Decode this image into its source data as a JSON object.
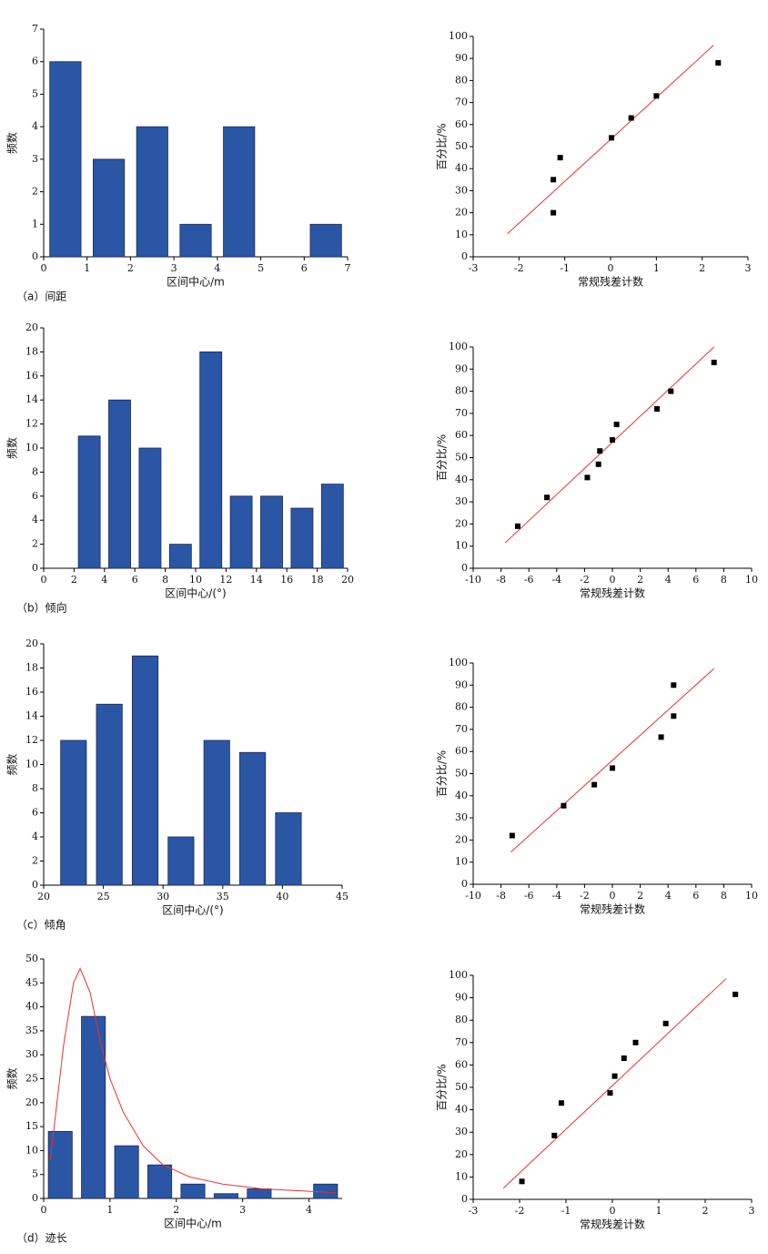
{
  "chart_data": [
    {
      "type": "bar",
      "caption": "（a）间距",
      "xlabel": "区间中心/m",
      "ylabel": "频数",
      "color": "#2b56a5",
      "x": [
        0.5,
        1.5,
        2.5,
        3.5,
        4.5,
        5.5,
        6.5
      ],
      "values": [
        6,
        3,
        4,
        1,
        4,
        0,
        1
      ],
      "xlim": [
        0,
        7
      ],
      "xticks": [
        0,
        1,
        2,
        3,
        4,
        5,
        6,
        7
      ],
      "ylim": [
        0,
        7
      ],
      "yticks": [
        0,
        1,
        2,
        3,
        4,
        5,
        6,
        7
      ]
    },
    {
      "type": "scatter",
      "xlabel": "常规残差计数",
      "ylabel": "百分比/%",
      "color": "#000000",
      "x": [
        -1.25,
        -1.25,
        -1.1,
        0.02,
        0.45,
        1.0,
        2.35
      ],
      "values": [
        20,
        35,
        45,
        54,
        63,
        73,
        88
      ],
      "fit_line": {
        "color": "#e8322d",
        "x": [
          -2.25,
          2.25
        ],
        "values": [
          10.5,
          96
        ]
      },
      "xlim": [
        -3,
        3
      ],
      "xticks": [
        -3,
        -2,
        -1,
        0,
        1,
        2,
        3
      ],
      "ylim": [
        0,
        100
      ],
      "yticks": [
        0,
        10,
        20,
        30,
        40,
        50,
        60,
        70,
        80,
        90,
        100
      ]
    },
    {
      "type": "bar",
      "caption": "（b）倾向",
      "xlabel": "区间中心/(°)",
      "ylabel": "频数",
      "color": "#2b56a5",
      "x": [
        3,
        5,
        7,
        9,
        11,
        13,
        15,
        17,
        19
      ],
      "values": [
        11,
        14,
        10,
        2,
        18,
        6,
        6,
        5,
        7
      ],
      "xlim": [
        0,
        20
      ],
      "xticks": [
        0,
        2,
        4,
        6,
        8,
        10,
        12,
        14,
        16,
        18,
        20
      ],
      "ylim": [
        0,
        20
      ],
      "yticks": [
        0,
        2,
        4,
        6,
        8,
        10,
        12,
        14,
        16,
        18,
        20
      ]
    },
    {
      "type": "scatter",
      "xlabel": "常规残差计数",
      "ylabel": "百分比/%",
      "color": "#000000",
      "x": [
        -6.8,
        -4.7,
        -1.8,
        -1.0,
        -0.9,
        0.0,
        0.3,
        3.2,
        4.2,
        7.3
      ],
      "values": [
        19,
        32,
        41,
        47,
        53,
        58,
        65,
        72,
        80,
        93
      ],
      "fit_line": {
        "color": "#e8322d",
        "x": [
          -7.7,
          7.3
        ],
        "values": [
          11.5,
          100
        ]
      },
      "xlim": [
        -10,
        10
      ],
      "xticks": [
        -10,
        -8,
        -6,
        -4,
        -2,
        0,
        2,
        4,
        6,
        8,
        10
      ],
      "ylim": [
        0,
        100
      ],
      "yticks": [
        0,
        10,
        20,
        30,
        40,
        50,
        60,
        70,
        80,
        90,
        100
      ]
    },
    {
      "type": "bar",
      "caption": "（c）倾角",
      "xlabel": "区间中心/(°)",
      "ylabel": "频数",
      "color": "#2b56a5",
      "x": [
        22.5,
        25.5,
        28.5,
        31.5,
        34.5,
        37.5,
        40.5
      ],
      "values": [
        12,
        15,
        19,
        4,
        12,
        11,
        6
      ],
      "xlim": [
        20,
        45
      ],
      "xticks": [
        20,
        25,
        30,
        35,
        40,
        45
      ],
      "ylim": [
        0,
        20
      ],
      "yticks": [
        0,
        2,
        4,
        6,
        8,
        10,
        12,
        14,
        16,
        18,
        20
      ]
    },
    {
      "type": "scatter",
      "xlabel": "常规残差计数",
      "ylabel": "百分比/%",
      "color": "#000000",
      "x": [
        -7.2,
        -3.5,
        -1.3,
        0.0,
        3.5,
        4.4,
        4.4
      ],
      "values": [
        22,
        35.5,
        45,
        52.5,
        66.5,
        76,
        90
      ],
      "fit_line": {
        "color": "#e8322d",
        "x": [
          -7.3,
          7.3
        ],
        "values": [
          14.5,
          97.5
        ]
      },
      "xlim": [
        -10,
        10
      ],
      "xticks": [
        -10,
        -8,
        -6,
        -4,
        -2,
        0,
        2,
        4,
        6,
        8,
        10
      ],
      "ylim": [
        0,
        100
      ],
      "yticks": [
        0,
        10,
        20,
        30,
        40,
        50,
        60,
        70,
        80,
        90,
        100
      ]
    },
    {
      "type": "bar",
      "caption": "（d）迹长",
      "xlabel": "区间中心/m",
      "ylabel": "频数",
      "color": "#2b56a5",
      "x": [
        0.25,
        0.75,
        1.25,
        1.75,
        2.25,
        2.75,
        3.25,
        3.75,
        4.25
      ],
      "values": [
        14,
        38,
        11,
        7,
        3,
        1,
        2,
        0,
        3
      ],
      "curve": {
        "color": "#e8322d",
        "x": [
          0.1,
          0.3,
          0.45,
          0.55,
          0.7,
          0.85,
          1.0,
          1.2,
          1.5,
          1.8,
          2.2,
          2.7,
          3.3,
          4.0,
          4.4
        ],
        "values": [
          8,
          32,
          45,
          48,
          43,
          33,
          25,
          18,
          11,
          7,
          4.5,
          3,
          2,
          1.5,
          1.2
        ]
      },
      "xlim": [
        0,
        4.5
      ],
      "xticks": [
        0,
        1,
        2,
        3,
        4
      ],
      "ylim": [
        0,
        50
      ],
      "yticks": [
        0,
        5,
        10,
        15,
        20,
        25,
        30,
        35,
        40,
        45,
        50
      ]
    },
    {
      "type": "scatter",
      "xlabel": "常规残差计数",
      "ylabel": "百分比/%",
      "color": "#000000",
      "x": [
        -1.95,
        -1.25,
        -1.1,
        -0.05,
        0.05,
        0.25,
        0.5,
        1.15,
        2.65
      ],
      "values": [
        8,
        28.5,
        43,
        47.5,
        55,
        63,
        70,
        78.5,
        91.5
      ],
      "fit_line": {
        "color": "#e8322d",
        "x": [
          -2.35,
          2.45
        ],
        "values": [
          5,
          98.5
        ]
      },
      "xlim": [
        -3,
        3
      ],
      "xticks": [
        -3,
        -2,
        -1,
        0,
        1,
        2,
        3
      ],
      "ylim": [
        0,
        100
      ],
      "yticks": [
        0,
        10,
        20,
        30,
        40,
        50,
        60,
        70,
        80,
        90,
        100
      ]
    }
  ]
}
